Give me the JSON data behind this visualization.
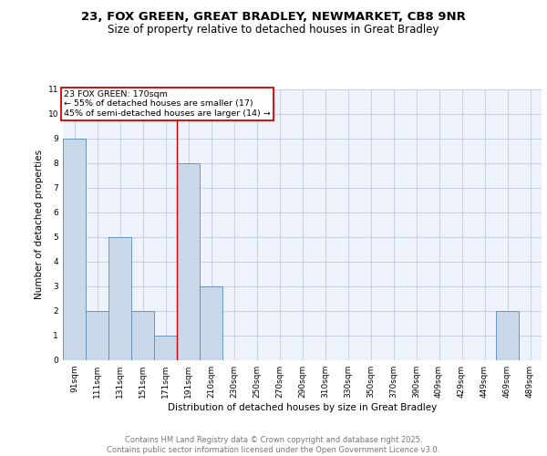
{
  "title1": "23, FOX GREEN, GREAT BRADLEY, NEWMARKET, CB8 9NR",
  "title2": "Size of property relative to detached houses in Great Bradley",
  "xlabel": "Distribution of detached houses by size in Great Bradley",
  "ylabel": "Number of detached properties",
  "categories": [
    "91sqm",
    "111sqm",
    "131sqm",
    "151sqm",
    "171sqm",
    "191sqm",
    "210sqm",
    "230sqm",
    "250sqm",
    "270sqm",
    "290sqm",
    "310sqm",
    "330sqm",
    "350sqm",
    "370sqm",
    "390sqm",
    "409sqm",
    "429sqm",
    "449sqm",
    "469sqm",
    "489sqm"
  ],
  "values": [
    9,
    2,
    5,
    2,
    1,
    8,
    3,
    0,
    0,
    0,
    0,
    0,
    0,
    0,
    0,
    0,
    0,
    0,
    0,
    2,
    0
  ],
  "bar_color": "#c8d8e8",
  "bar_edge_color": "#5b8db8",
  "background_color": "#eef2fb",
  "grid_color": "#c5cfe0",
  "red_line_x": 4.5,
  "annotation_text": "23 FOX GREEN: 170sqm\n← 55% of detached houses are smaller (17)\n45% of semi-detached houses are larger (14) →",
  "annotation_box_color": "#ffffff",
  "annotation_box_edge_color": "#cc0000",
  "ylim": [
    0,
    11
  ],
  "yticks": [
    0,
    1,
    2,
    3,
    4,
    5,
    6,
    7,
    8,
    9,
    10,
    11
  ],
  "footer_text": "Contains HM Land Registry data © Crown copyright and database right 2025.\nContains public sector information licensed under the Open Government Licence v3.0.",
  "red_line_color": "#cc0000",
  "title_fontsize": 9.5,
  "subtitle_fontsize": 8.5,
  "axis_label_fontsize": 7.5,
  "tick_fontsize": 6.5,
  "annotation_fontsize": 6.8,
  "footer_fontsize": 6.0
}
